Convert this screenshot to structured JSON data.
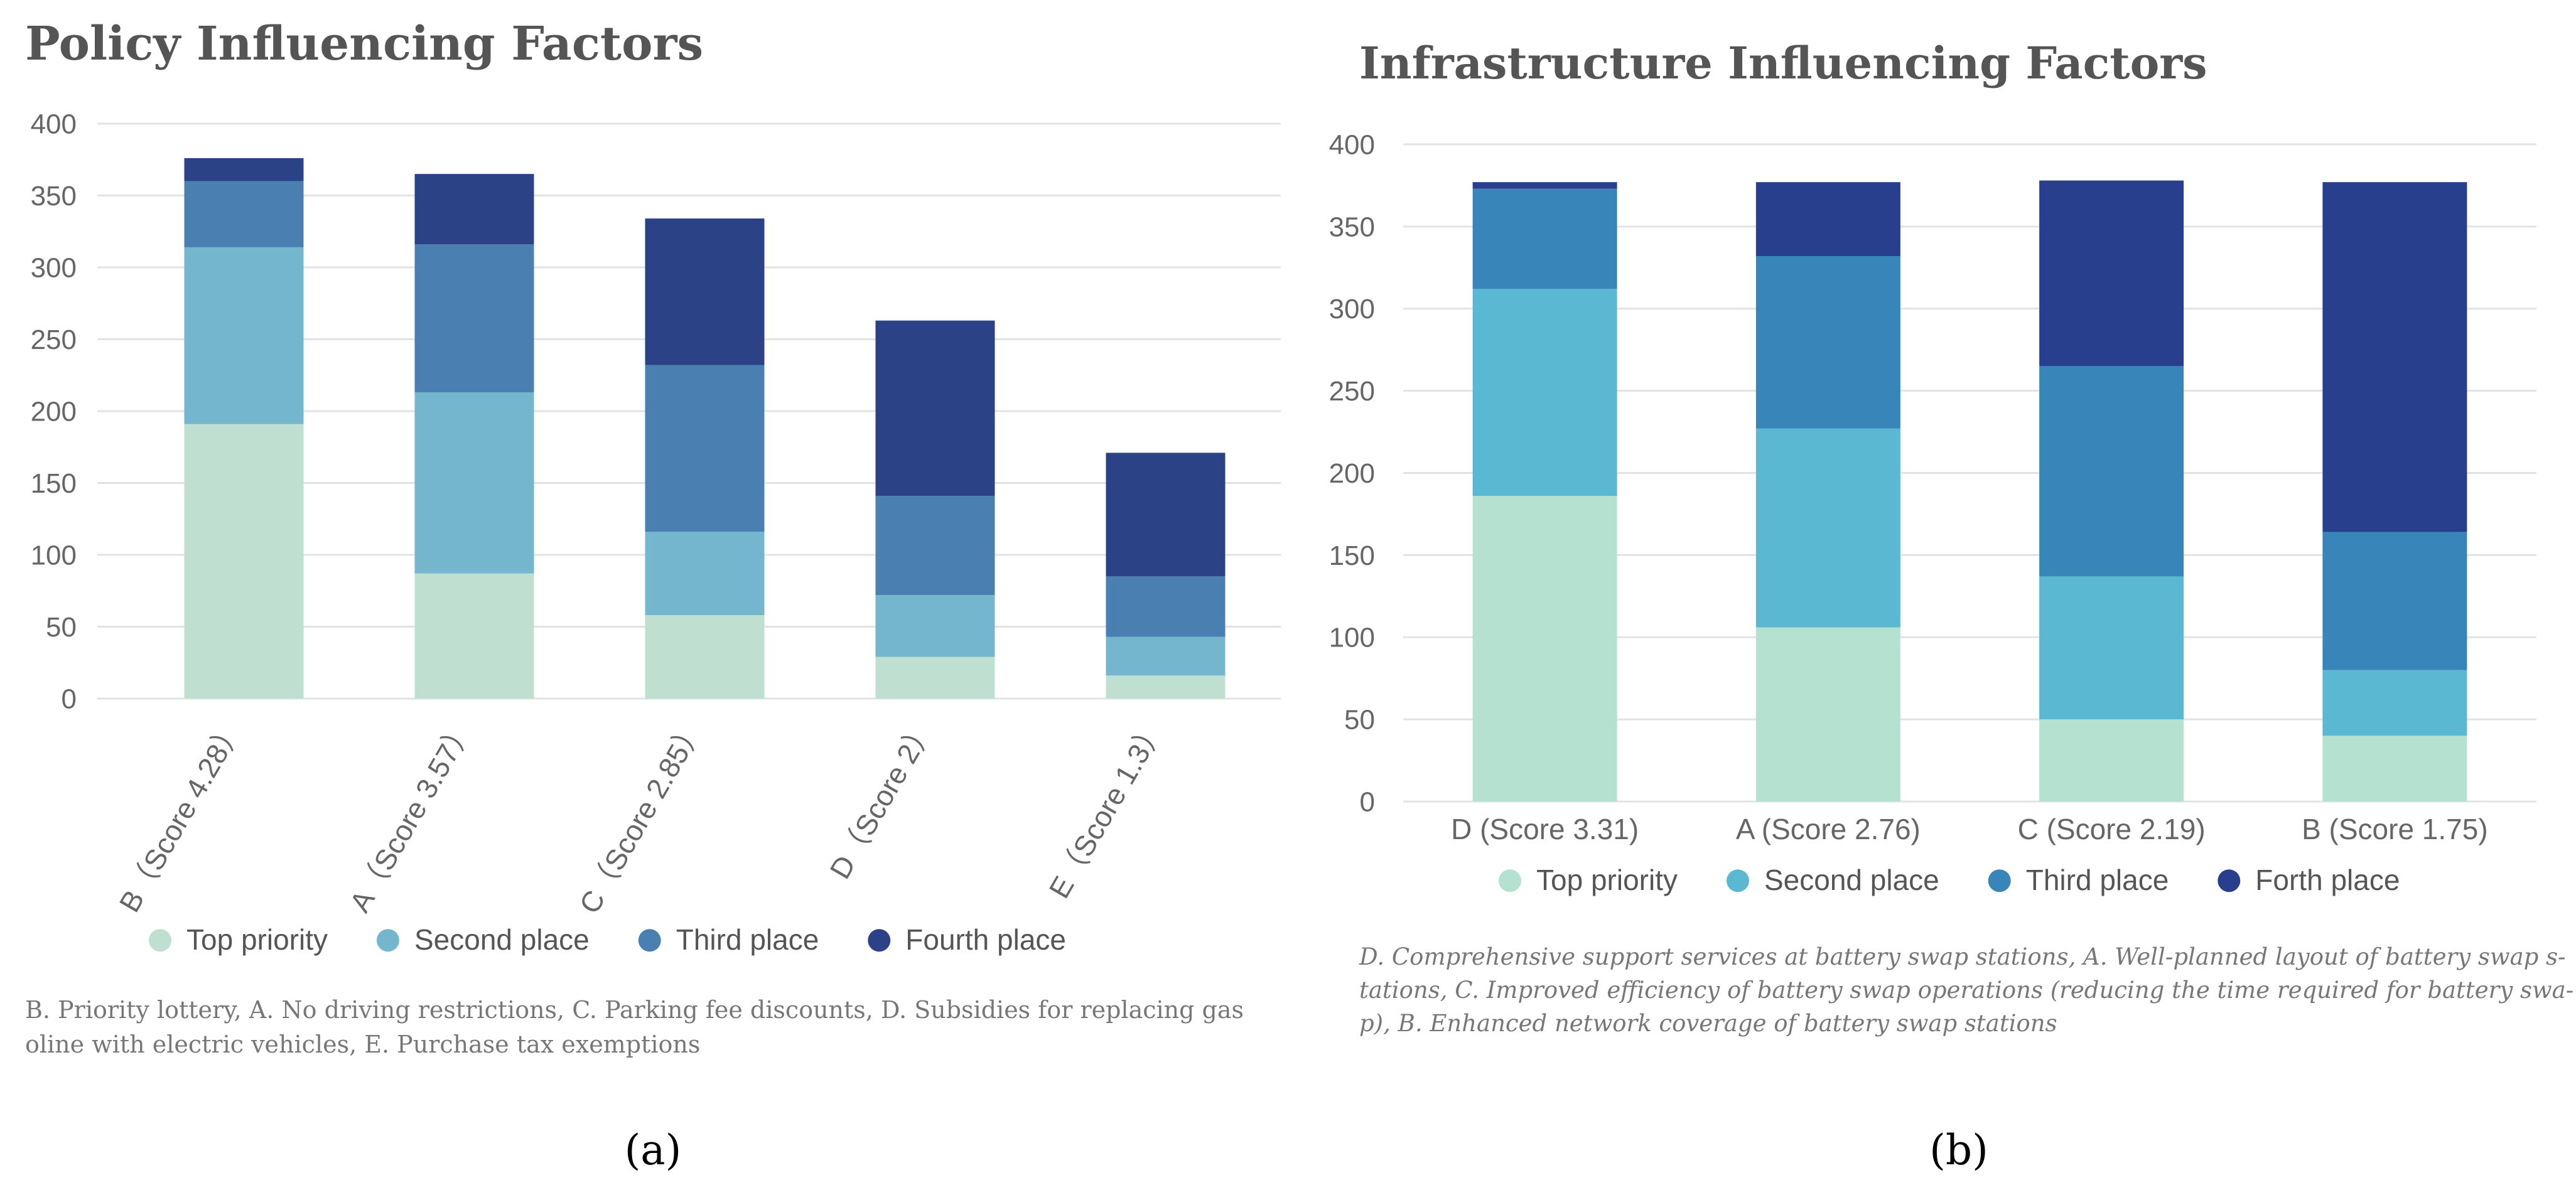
{
  "chart_data": [
    {
      "type": "bar",
      "stacked": true,
      "title": "Policy Influencing Factors",
      "categories": [
        "B（Score 4.28）",
        "A（Score 3.57）",
        "C（Score 2.85）",
        "D（Score 2）",
        "E（Score 1.3）"
      ],
      "series": [
        {
          "name": "Top priority",
          "color": "#bfe0d1",
          "values": [
            191,
            87,
            58,
            29,
            16
          ]
        },
        {
          "name": "Second place",
          "color": "#74b6cd",
          "values": [
            123,
            126,
            58,
            43,
            27
          ]
        },
        {
          "name": "Third place",
          "color": "#4a80b1",
          "values": [
            46,
            103,
            116,
            69,
            42
          ]
        },
        {
          "name": "Fourth place",
          "color": "#2c4286",
          "values": [
            16,
            49,
            102,
            122,
            86
          ]
        }
      ],
      "ylim": [
        0,
        400
      ],
      "yticks": [
        0,
        50,
        100,
        150,
        200,
        250,
        300,
        350,
        400
      ],
      "xlabel": "",
      "ylabel": "",
      "grid": true,
      "legend": "bottom",
      "caption": [
        "B. Priority lottery, A. No driving restrictions, C. Parking fee discounts, D. Subsidies for replacing gas",
        "oline with electric vehicles, E. Purchase tax exemptions"
      ],
      "panel_label": "(a)"
    },
    {
      "type": "bar",
      "stacked": true,
      "title": "Infrastructure Influencing Factors",
      "categories": [
        "D (Score 3.31)",
        "A (Score 2.76)",
        "C (Score 2.19)",
        "B (Score 1.75)"
      ],
      "series": [
        {
          "name": "Top priority",
          "color": "#b5e2d0",
          "values": [
            186,
            106,
            50,
            40
          ]
        },
        {
          "name": "Second place",
          "color": "#5bb8d3",
          "values": [
            126,
            121,
            87,
            40
          ]
        },
        {
          "name": "Third place",
          "color": "#3785b9",
          "values": [
            61,
            105,
            128,
            84
          ]
        },
        {
          "name": "Forth place",
          "color": "#283f8e",
          "values": [
            4,
            45,
            113,
            213
          ]
        }
      ],
      "ylim": [
        0,
        400
      ],
      "yticks": [
        0,
        50,
        100,
        150,
        200,
        250,
        300,
        350,
        400
      ],
      "xlabel": "",
      "ylabel": "",
      "grid": true,
      "legend": "bottom",
      "caption": [
        "D. Comprehensive support services at battery swap stations, A. Well-planned layout of battery swap s-",
        "tations, C. Improved efficiency of battery swap operations (reducing the time required for battery swa-",
        "p), B. Enhanced network coverage of battery swap stations"
      ],
      "panel_label": "(b)"
    }
  ]
}
